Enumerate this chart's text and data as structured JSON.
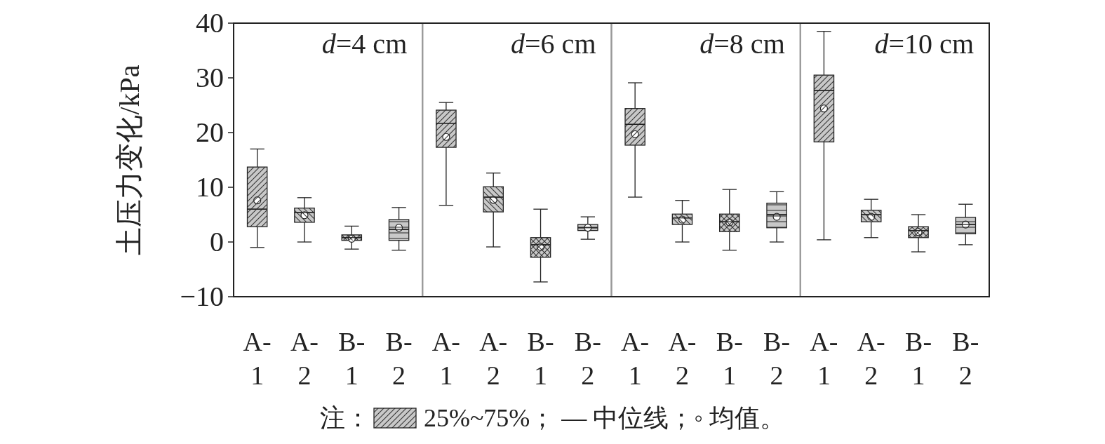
{
  "chart_data": [
    {
      "type": "box",
      "title": "d=4 cm",
      "ylabel": "土压力变化/kPa",
      "categories": [
        "A-1",
        "A-2",
        "B-1",
        "B-2"
      ],
      "ylim": [
        -10,
        40
      ],
      "yticks": [
        {
          "value": -10,
          "label": "−10"
        },
        0,
        10,
        20,
        30,
        40
      ],
      "series": [
        {
          "color": "#c8c8c8",
          "boxes": [
            {
              "low": -1.0,
              "q1": 2.8,
              "median": 6.0,
              "q3": 13.7,
              "high": 17.0,
              "mean": 7.6
            },
            {
              "low": 0,
              "q1": 3.6,
              "median": 5.4,
              "q3": 6.2,
              "high": 8.1,
              "mean": 4.9
            },
            {
              "low": -1.3,
              "q1": 0.3,
              "median": 0.8,
              "q3": 1.3,
              "high": 2.9,
              "mean": 0.6
            },
            {
              "low": -1.5,
              "q1": 0.3,
              "median": 2.3,
              "q3": 4.1,
              "high": 6.3,
              "mean": 2.6
            }
          ]
        }
      ],
      "annotations": [
        "注：",
        "25%~75%；",
        "— 中位线；◦ 均值。"
      ]
    },
    {
      "type": "box",
      "title": "d=6 cm",
      "categories": [
        "A-1",
        "A-2",
        "B-1",
        "B-2"
      ],
      "ylim": [
        -10,
        40
      ],
      "tick_labels": "x",
      "series": [
        {
          "color": "#c8c8c8",
          "boxes": [
            {
              "low": 6.7,
              "q1": 17.3,
              "median": 21.7,
              "q3": 24.1,
              "high": 25.5,
              "mean": 19.2
            },
            {
              "low": -0.9,
              "q1": 5.5,
              "median": 8.2,
              "q3": 10.1,
              "high": 12.6,
              "mean": 7.7
            },
            {
              "low": -7.3,
              "q1": -2.8,
              "median": -0.5,
              "q3": 0.8,
              "high": 6.0,
              "mean": -0.9
            },
            {
              "low": 0.5,
              "q1": 2.1,
              "median": 2.6,
              "q3": 3.2,
              "high": 4.6,
              "mean": 2.6
            }
          ]
        }
      ]
    },
    {
      "type": "box",
      "title": "d=8 cm",
      "categories": [
        "A-1",
        "A-2",
        "B-1",
        "B-2"
      ],
      "ylim": [
        -10,
        40
      ],
      "tick_labels": "x",
      "series": [
        {
          "color": "#c8c8c8",
          "boxes": [
            {
              "low": 8.2,
              "q1": 17.7,
              "median": 21.5,
              "q3": 24.4,
              "high": 29.1,
              "mean": 19.7
            },
            {
              "low": 0,
              "q1": 3.2,
              "median": 4.4,
              "q3": 5.1,
              "high": 7.6,
              "mean": 4.1
            },
            {
              "low": -1.5,
              "q1": 1.9,
              "median": 3.7,
              "q3": 5.1,
              "high": 9.6,
              "mean": 3.6
            },
            {
              "low": 0,
              "q1": 2.6,
              "median": 5.0,
              "q3": 7.1,
              "high": 9.2,
              "mean": 4.6
            }
          ]
        }
      ]
    },
    {
      "type": "box",
      "title": "d=10 cm",
      "categories": [
        "A-1",
        "A-2",
        "B-1",
        "B-2"
      ],
      "ylim": [
        -10,
        40
      ],
      "tick_labels": "x",
      "series": [
        {
          "color": "#c8c8c8",
          "boxes": [
            {
              "low": 0.4,
              "q1": 18.3,
              "median": 27.7,
              "q3": 30.5,
              "high": 38.5,
              "mean": 24.4
            },
            {
              "low": 0.8,
              "q1": 3.7,
              "median": 5.0,
              "q3": 5.8,
              "high": 7.8,
              "mean": 4.6
            },
            {
              "low": -1.8,
              "q1": 0.8,
              "median": 2.1,
              "q3": 2.8,
              "high": 5.0,
              "mean": 1.8
            },
            {
              "low": -0.5,
              "q1": 1.5,
              "median": 3.2,
              "q3": 4.5,
              "high": 6.9,
              "mean": 3.2
            }
          ]
        }
      ]
    }
  ]
}
